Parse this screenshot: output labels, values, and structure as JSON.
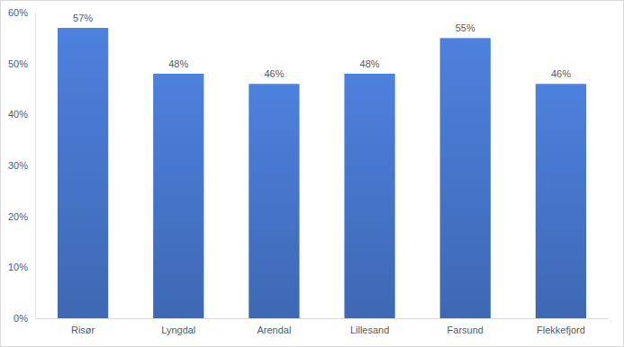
{
  "chart_data": {
    "type": "bar",
    "categories": [
      "Risør",
      "Lyngdal",
      "Arendal",
      "Lillesand",
      "Farsund",
      "Flekkefjord"
    ],
    "values": [
      57,
      48,
      46,
      48,
      55,
      46
    ],
    "value_labels": [
      "57%",
      "48%",
      "46%",
      "48%",
      "55%",
      "46%"
    ],
    "color": "#4472c4",
    "ylim": [
      0,
      60
    ],
    "yticks": [
      {
        "value": 0,
        "label": "0%"
      },
      {
        "value": 10,
        "label": "10%"
      },
      {
        "value": 20,
        "label": "20%"
      },
      {
        "value": 30,
        "label": "30%"
      },
      {
        "value": 40,
        "label": "40%"
      },
      {
        "value": 50,
        "label": "50%"
      },
      {
        "value": 60,
        "label": "60%"
      }
    ],
    "grid": false,
    "data_labels": true
  }
}
